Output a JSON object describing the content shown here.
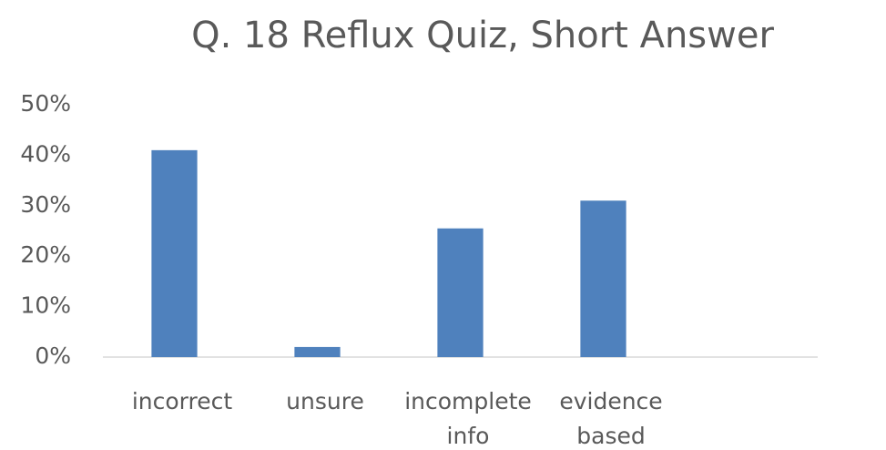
{
  "chart_data": {
    "type": "bar",
    "title": "Q. 18 Reflux Quiz, Short Answer",
    "categories": [
      "incorrect",
      "unsure",
      "incomplete info",
      "evidence based",
      null
    ],
    "values": [
      41,
      2,
      25.5,
      31,
      null
    ],
    "color": "#4f81bd",
    "ylim": [
      0,
      50
    ],
    "yticks": [
      {
        "value": 0,
        "label": "0%"
      },
      {
        "value": 10,
        "label": "10%"
      },
      {
        "value": 20,
        "label": "20%"
      },
      {
        "value": 30,
        "label": "30%"
      },
      {
        "value": 40,
        "label": "40%"
      },
      {
        "value": 50,
        "label": "50%"
      }
    ],
    "grid": false
  }
}
